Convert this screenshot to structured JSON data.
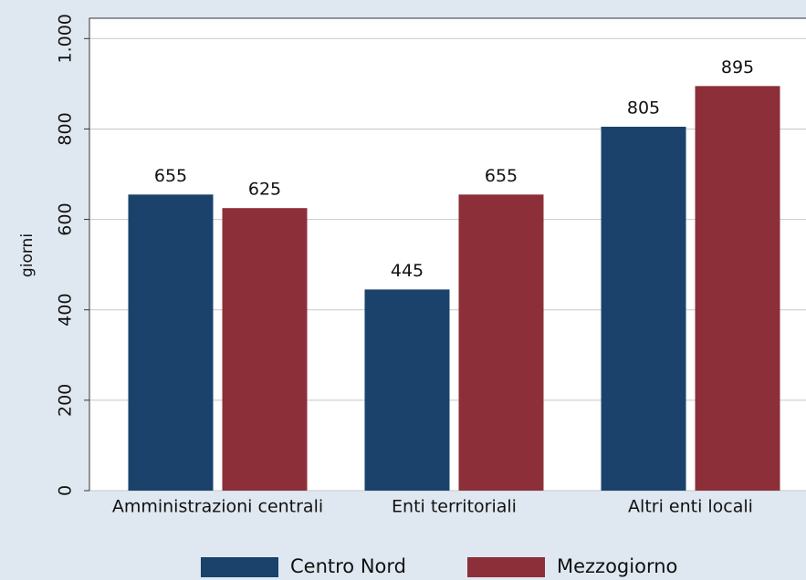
{
  "chart_data": {
    "type": "bar",
    "y_label": "giorni",
    "categories": [
      "Amministrazioni centrali",
      "Enti territoriali",
      "Altri enti locali"
    ],
    "series": [
      {
        "name": "Centro Nord",
        "color": "#1a426b",
        "values": [
          655,
          445,
          805
        ]
      },
      {
        "name": "Mezzogiorno",
        "color": "#8c2f39",
        "values": [
          625,
          655,
          895
        ]
      }
    ],
    "ylim": [
      0,
      1045
    ],
    "yticks": [
      0,
      200,
      400,
      600,
      800,
      {
        "value": 1000,
        "label": "1.000"
      }
    ],
    "grid": true,
    "value_labels_shown": true,
    "legend": "bottom"
  }
}
